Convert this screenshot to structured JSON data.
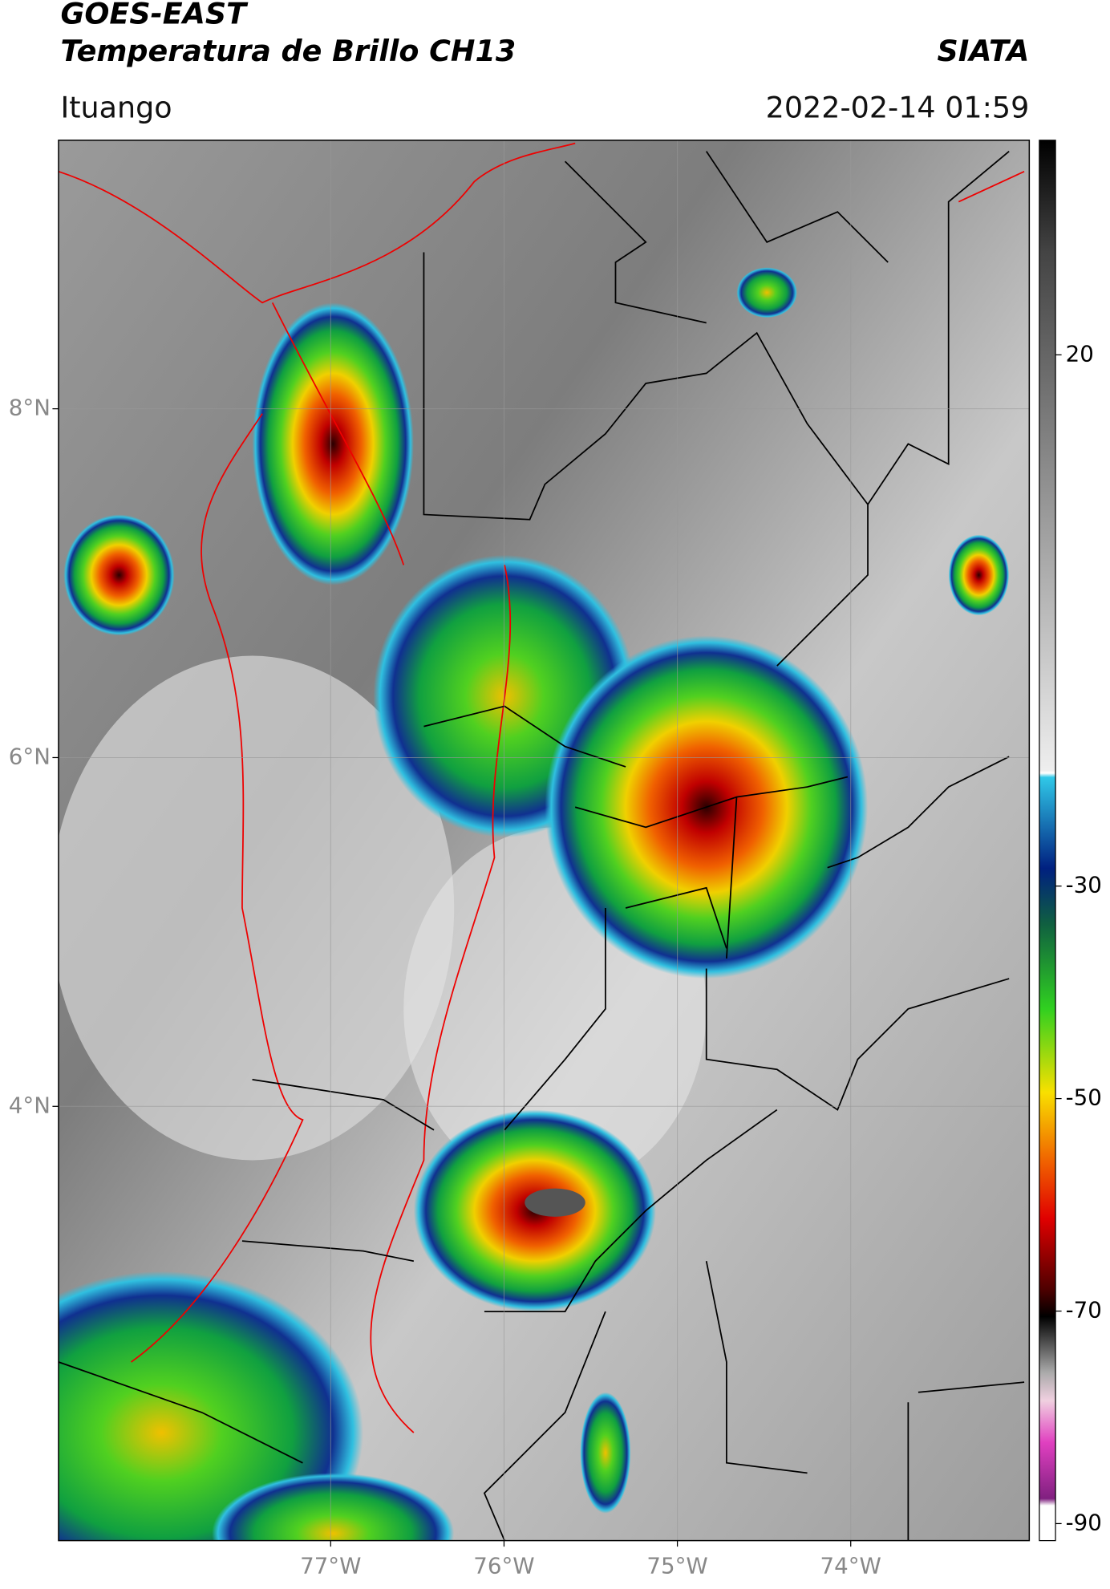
{
  "header": {
    "title": "GOES-EAST",
    "subtitle": "Temperatura de Brillo CH13",
    "organization": "SIATA",
    "location": "Ituango",
    "datetime": "2022-02-14 01:59"
  },
  "map": {
    "xlim": [
      -78.57,
      -72.97
    ],
    "ylim": [
      1.51,
      9.54
    ],
    "xticks": [
      {
        "value": -77,
        "label": "77°W"
      },
      {
        "value": -76,
        "label": "76°W"
      },
      {
        "value": -75,
        "label": "75°W"
      },
      {
        "value": -74,
        "label": "74°W"
      }
    ],
    "yticks": [
      {
        "value": 8,
        "label": "8°N"
      },
      {
        "value": 6,
        "label": "6°N"
      },
      {
        "value": 4,
        "label": "4°N"
      }
    ]
  },
  "colorbar": {
    "lim": [
      -91.6,
      40.2
    ],
    "ticks": [
      20,
      -30,
      -50,
      -70,
      -90
    ]
  }
}
